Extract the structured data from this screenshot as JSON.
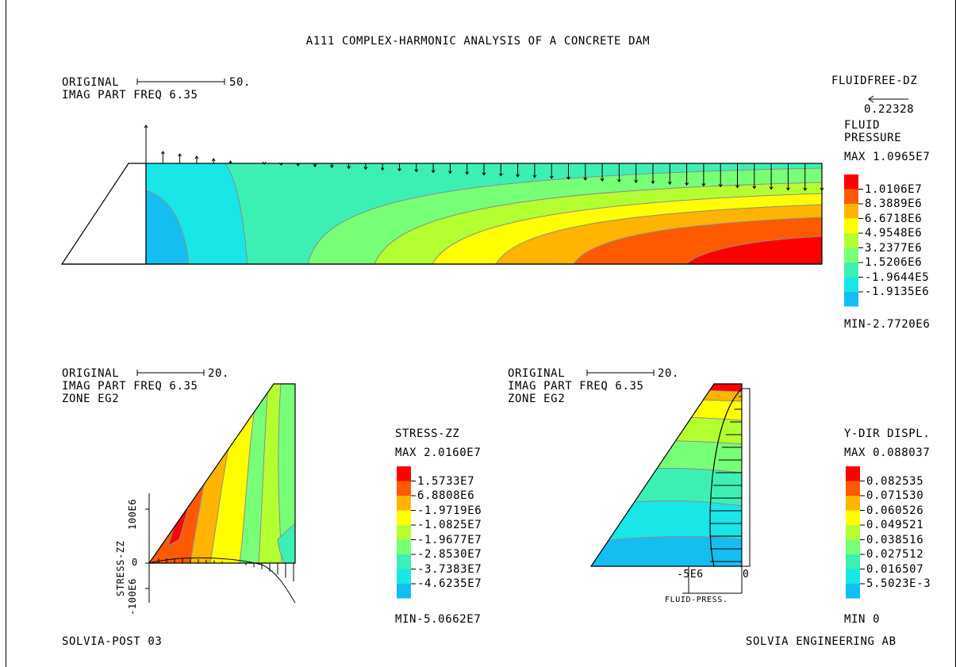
{
  "page": {
    "title": "A111 COMPLEX-HARMONIC ANALYSIS OF A CONCRETE DAM",
    "footer_left": "SOLVIA-POST 03",
    "footer_right": "SOLVIA ENGINEERING AB"
  },
  "colors": {
    "red": "#ff0000",
    "orange_red": "#ff5a00",
    "orange": "#ffb400",
    "yellow": "#ffff00",
    "yellow_green": "#b4ff32",
    "light_green": "#78ff78",
    "teal": "#3cf0b4",
    "cyan": "#19e6e6",
    "sky": "#14bef0",
    "contour_line": "#8c8c8c"
  },
  "top_plot": {
    "scale_label": "ORIGINAL",
    "scale_value": "50.",
    "caption": "IMAG PART FREQ 6.35",
    "vector_label": "FLUIDFREE-DZ",
    "vector_value": "0.22328",
    "legend": {
      "title_line1": "FLUID",
      "title_line2": "PRESSURE",
      "max": "MAX 1.0965E7",
      "min": "MIN-2.7720E6",
      "levels": [
        "1.0106E7",
        "8.3889E6",
        "6.6718E6",
        "4.9548E6",
        "3.2377E6",
        "1.5206E6",
        "-1.9644E5",
        "-1.9135E6"
      ]
    }
  },
  "bottom_left": {
    "scale_label": "ORIGINAL",
    "scale_value": "20.",
    "caption": "IMAG PART FREQ 6.35",
    "zone": "ZONE EG2",
    "axis_title": "STRESS-ZZ",
    "axis_top": "100E6",
    "axis_zero": "0",
    "axis_bottom": "-100E6",
    "legend": {
      "title": "STRESS-ZZ",
      "max": "MAX 2.0160E7",
      "min": "MIN-5.0662E7",
      "levels": [
        "1.5733E7",
        "6.8808E6",
        "-1.9719E6",
        "-1.0825E7",
        "-1.9677E7",
        "-2.8530E7",
        "-3.7383E7",
        "-4.6235E7"
      ]
    }
  },
  "bottom_right": {
    "scale_label": "ORIGINAL",
    "scale_value": "20.",
    "caption": "IMAG PART FREQ 6.35",
    "zone": "ZONE EG2",
    "axis_left": "-5E6",
    "axis_right": "0",
    "axis_title": "FLUID-PRESS.",
    "legend": {
      "title": "Y-DIR DISPL.",
      "max": "MAX 0.088037",
      "min": "MIN 0",
      "levels": [
        "0.082535",
        "0.071530",
        "0.060526",
        "0.049521",
        "0.038516",
        "0.027512",
        "0.016507",
        "5.5023E-3"
      ]
    }
  }
}
